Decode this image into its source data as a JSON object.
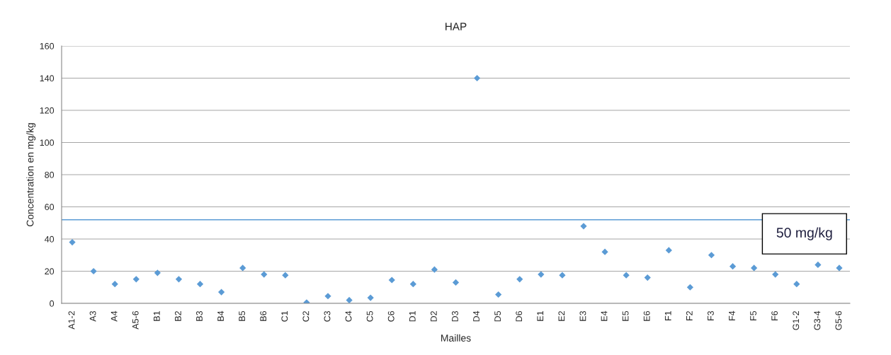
{
  "chart_data": {
    "type": "scatter",
    "title": "HAP",
    "xlabel": "Mailles",
    "ylabel": "Concentration en mg/kg",
    "categories": [
      "A1-2",
      "A3",
      "A4",
      "A5-6",
      "B1",
      "B2",
      "B3",
      "B4",
      "B5",
      "B6",
      "C1",
      "C2",
      "C3",
      "C4",
      "C5",
      "C6",
      "D1",
      "D2",
      "D3",
      "D4",
      "D5",
      "D6",
      "E1",
      "E2",
      "E3",
      "E4",
      "E5",
      "E6",
      "F1",
      "F2",
      "F3",
      "F4",
      "F5",
      "F6",
      "G1-2",
      "G3-4",
      "G5-6"
    ],
    "series": [
      {
        "color": "#5b9bd5",
        "values": [
          38,
          20,
          12,
          15,
          19,
          15,
          12,
          7,
          22,
          18,
          17.5,
          0.5,
          4.5,
          2,
          3.5,
          14.5,
          12,
          21,
          13,
          140,
          5.5,
          15,
          18,
          17.5,
          48,
          32,
          17.5,
          16,
          33,
          10,
          30,
          23,
          22,
          18,
          12,
          24,
          22
        ]
      }
    ],
    "ylim": [
      0,
      160
    ],
    "yticks": [
      0,
      20,
      40,
      60,
      80,
      100,
      120,
      140,
      160
    ],
    "grid": "y",
    "marker": "diamond",
    "legend": false,
    "ref_lines": [
      {
        "axis": "y",
        "value": 52,
        "label": "50 mg/kg",
        "color": "#5b9bd5"
      }
    ]
  }
}
